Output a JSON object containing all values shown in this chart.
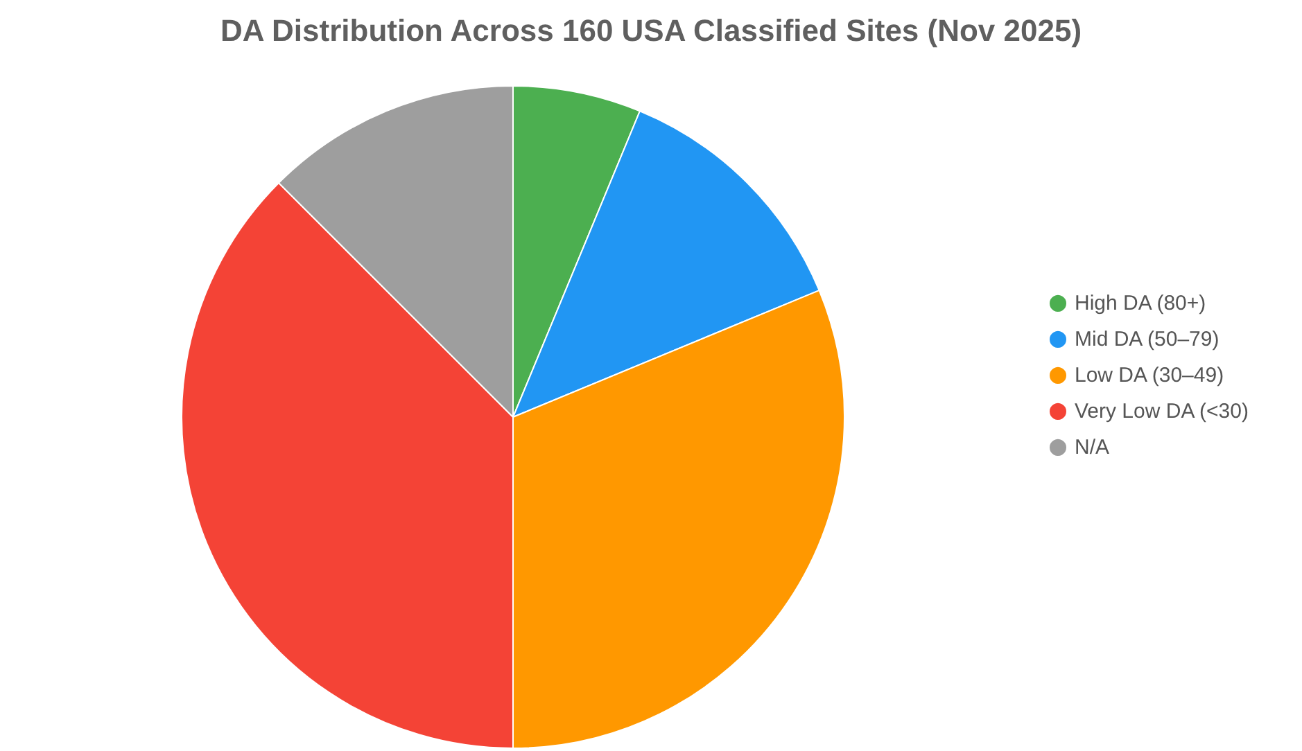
{
  "chart_data": {
    "type": "pie",
    "title": "DA Distribution Across 160 USA Classified Sites (Nov 2025)",
    "categories": [
      "High DA (80+)",
      "Mid DA (50–79)",
      "Low DA (30–49)",
      "Very Low DA (<30)",
      "N/A"
    ],
    "values": [
      6.25,
      12.5,
      31.25,
      37.5,
      12.5
    ],
    "colors": [
      "#4caf50",
      "#2196f3",
      "#ff9800",
      "#f44336",
      "#9e9e9e"
    ],
    "legend": "right"
  }
}
